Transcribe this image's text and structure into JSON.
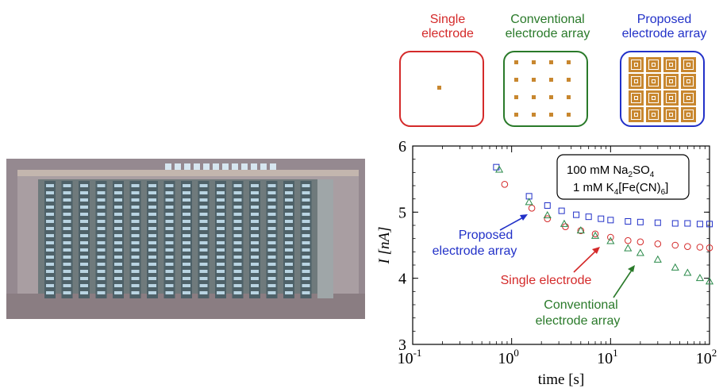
{
  "electrode_types": [
    {
      "line1": "Single",
      "line2": "electrode",
      "color": "#d42a2a"
    },
    {
      "line1": "Conventional",
      "line2": "electrode  array",
      "color": "#2a7a2a"
    },
    {
      "line1": "Proposed",
      "line2": "electrode  array",
      "color": "#2231c8"
    }
  ],
  "electrode_color": "#c8872f",
  "chart_data": {
    "type": "scatter",
    "xlabel": "time [s]",
    "ylabel": "I [nA]",
    "xscale": "log",
    "xlim": [
      0.1,
      100
    ],
    "ylim": [
      3,
      6
    ],
    "xticks": [
      "10",
      "10",
      "10",
      "10"
    ],
    "xtick_exponents": [
      "-1",
      "0",
      "1",
      "2"
    ],
    "yticks": [
      "3",
      "4",
      "5",
      "6"
    ],
    "legend_box": {
      "line1_main": "100 mM Na",
      "line1_sub": "2",
      "line1_rest": "SO",
      "line1_sub2": "4",
      "line2_main": "1 mM K",
      "line2_sub": "4",
      "line2_rest": "[Fe(CN)",
      "line2_close": "]",
      "line2_sub2": "6"
    },
    "series": [
      {
        "name": "Proposed electrode array",
        "label_line1": "Proposed",
        "label_line2": "electrode array",
        "marker": "square",
        "color": "#2231c8",
        "x": [
          0.7,
          1.5,
          2.3,
          3.2,
          4.5,
          6,
          8,
          10,
          15,
          20,
          30,
          45,
          60,
          80,
          100
        ],
        "y": [
          5.68,
          5.24,
          5.1,
          5.02,
          4.96,
          4.93,
          4.9,
          4.88,
          4.86,
          4.85,
          4.84,
          4.83,
          4.83,
          4.82,
          4.82
        ]
      },
      {
        "name": "Single electrode",
        "label_line1": "Single electrode",
        "marker": "circle",
        "color": "#d42a2a",
        "x": [
          0.85,
          1.6,
          2.3,
          3.5,
          5,
          7,
          10,
          15,
          20,
          30,
          45,
          60,
          80,
          100
        ],
        "y": [
          5.42,
          5.06,
          4.9,
          4.78,
          4.72,
          4.67,
          4.62,
          4.57,
          4.55,
          4.52,
          4.5,
          4.48,
          4.47,
          4.46
        ]
      },
      {
        "name": "Conventional electrode array",
        "label_line1": "Conventional",
        "label_line2": "electrode array",
        "marker": "triangle",
        "color": "#2a8a4a",
        "x": [
          0.75,
          1.5,
          2.3,
          3.4,
          5,
          7,
          10,
          15,
          20,
          30,
          45,
          60,
          80,
          100
        ],
        "y": [
          5.64,
          5.15,
          4.95,
          4.82,
          4.72,
          4.64,
          4.56,
          4.45,
          4.38,
          4.28,
          4.16,
          4.08,
          4.0,
          3.95
        ]
      }
    ]
  }
}
